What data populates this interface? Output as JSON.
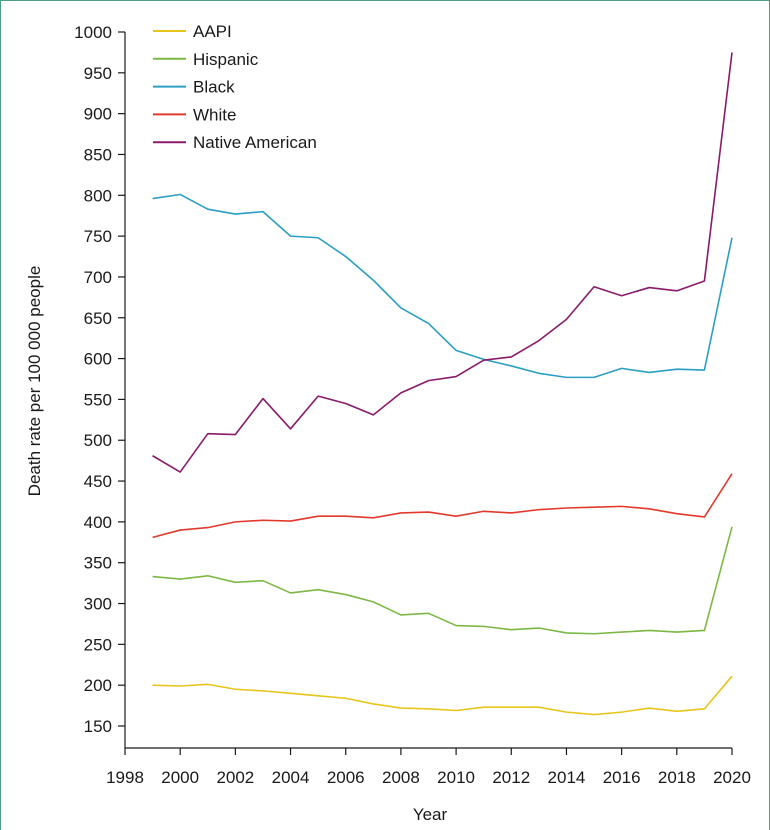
{
  "chart_data": {
    "type": "line",
    "xlabel": "Year",
    "ylabel": "Death rate per 100 000 people",
    "xlim": [
      1998,
      2020
    ],
    "ylim": [
      150,
      1000
    ],
    "xticks": [
      1998,
      2000,
      2002,
      2004,
      2006,
      2008,
      2010,
      2012,
      2014,
      2016,
      2018,
      2020
    ],
    "yticks": [
      150,
      200,
      250,
      300,
      350,
      400,
      450,
      500,
      550,
      600,
      650,
      700,
      750,
      800,
      850,
      900,
      950,
      1000
    ],
    "legend_position": "top-left",
    "x": [
      1999,
      2000,
      2001,
      2002,
      2003,
      2004,
      2005,
      2006,
      2007,
      2008,
      2009,
      2010,
      2011,
      2012,
      2013,
      2014,
      2015,
      2016,
      2017,
      2018,
      2019,
      2020
    ],
    "series": [
      {
        "name": "AAPI",
        "color": "#e8c51a",
        "values": [
          200,
          199,
          201,
          195,
          193,
          190,
          187,
          184,
          177,
          172,
          171,
          169,
          173,
          173,
          173,
          167,
          164,
          167,
          172,
          168,
          171,
          211
        ]
      },
      {
        "name": "Hispanic",
        "color": "#7cb843",
        "values": [
          333,
          330,
          334,
          326,
          328,
          313,
          317,
          311,
          302,
          286,
          288,
          273,
          272,
          268,
          270,
          264,
          263,
          265,
          267,
          265,
          267,
          394
        ]
      },
      {
        "name": "Black",
        "color": "#2a9fc2",
        "values": [
          796,
          801,
          783,
          777,
          780,
          750,
          748,
          725,
          696,
          662,
          643,
          610,
          599,
          591,
          582,
          577,
          577,
          588,
          583,
          587,
          586,
          748
        ]
      },
      {
        "name": "White",
        "color": "#e2392d",
        "values": [
          381,
          390,
          393,
          400,
          402,
          401,
          407,
          407,
          405,
          411,
          412,
          407,
          413,
          411,
          415,
          417,
          418,
          419,
          416,
          410,
          406,
          459
        ]
      },
      {
        "name": "Native American",
        "color": "#8a1a6a",
        "values": [
          481,
          461,
          508,
          507,
          551,
          514,
          554,
          545,
          531,
          558,
          573,
          578,
          598,
          602,
          622,
          648,
          688,
          677,
          687,
          683,
          695,
          975
        ]
      }
    ]
  }
}
